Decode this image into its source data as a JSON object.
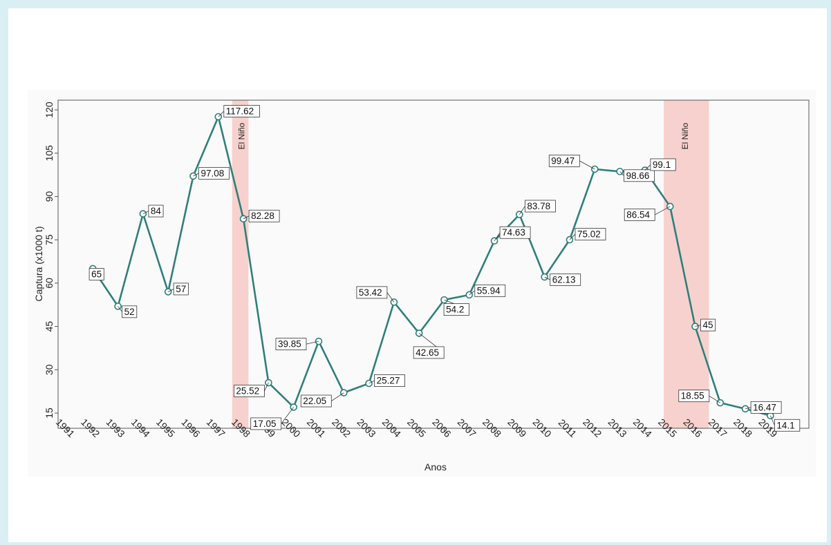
{
  "chart_data": {
    "type": "line",
    "xlabel": "Anos",
    "ylabel": "Captura (x1000 t)",
    "xlim": [
      1991,
      2020
    ],
    "ylim": [
      10,
      122
    ],
    "yticks": [
      15,
      30,
      45,
      60,
      75,
      90,
      105,
      120
    ],
    "x_tick_labels": [
      "1991",
      "1992",
      "1993",
      "1994",
      "1995",
      "1996",
      "1997",
      "1998",
      "1999",
      "2000",
      "2001",
      "2002",
      "2003",
      "2004",
      "2005",
      "2006",
      "2007",
      "2008",
      "2009",
      "2010",
      "2011",
      "2012",
      "2013",
      "2014",
      "2015",
      "2016",
      "2017",
      "2018",
      "2019"
    ],
    "grid": false,
    "line_color": "#2e7f7a",
    "band_color": "#f6c9c4",
    "series": [
      {
        "x": [
          1992,
          1993,
          1994,
          1995,
          1996,
          1997,
          1998,
          1999,
          2000,
          2001,
          2002,
          2003,
          2004,
          2005,
          2006,
          2007,
          2008,
          2009,
          2010,
          2011,
          2012,
          2013,
          2014,
          2015,
          2016,
          2017,
          2018,
          2019
        ],
        "values": [
          65,
          52,
          84,
          57,
          97.08,
          117.62,
          82.28,
          25.52,
          17.05,
          39.85,
          22.05,
          25.27,
          53.42,
          42.65,
          54.2,
          55.94,
          74.63,
          83.78,
          62.13,
          75.02,
          99.47,
          98.66,
          99.1,
          86.54,
          45,
          18.55,
          16.47,
          14.1
        ],
        "labels": [
          "65",
          "52",
          "84",
          "57",
          "97.08",
          "117.62",
          "82.28",
          "25.52",
          "17.05",
          "39.85",
          "22.05",
          "25.27",
          "53.42",
          "42.65",
          "54.2",
          "55.94",
          "74.63",
          "83.78",
          "62.13",
          "75.02",
          "99.47",
          "98.66",
          "99.1",
          "86.54",
          "45",
          "18.55",
          "16.47",
          "14.1"
        ]
      }
    ],
    "annotations": [
      {
        "text": "El Niño",
        "x_start": 1997.55,
        "x_end": 1998.2
      },
      {
        "text": "El Niño",
        "x_start": 2014.75,
        "x_end": 2016.55
      }
    ]
  }
}
